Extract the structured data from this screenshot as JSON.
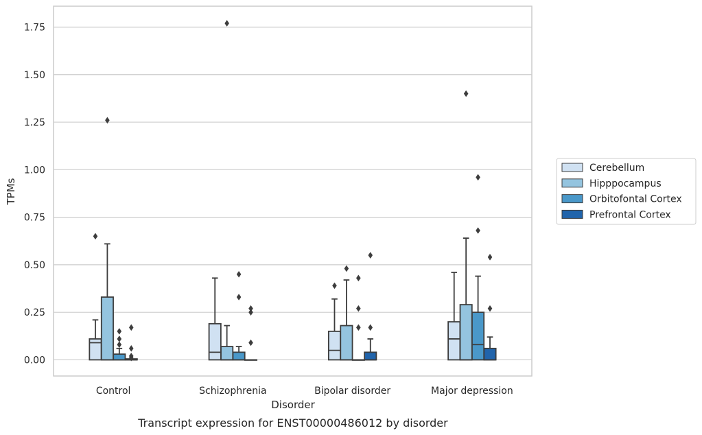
{
  "chart_data": {
    "type": "box",
    "title": "",
    "caption": "Transcript expression for ENST00000486012 by disorder",
    "xlabel": "Disorder",
    "ylabel": "TPMs",
    "ylim": [
      -0.085,
      1.86
    ],
    "yticks": [
      "0.00",
      "0.25",
      "0.50",
      "0.75",
      "1.00",
      "1.25",
      "1.50",
      "1.75"
    ],
    "grid": "horizontal",
    "legend_position": "right",
    "categories": [
      "Control",
      "Schizophrenia",
      "Bipolar disorder",
      "Major depression"
    ],
    "series": [
      {
        "name": "Cerebellum",
        "color": "#d0e1f2",
        "boxes": [
          {
            "q1": 0,
            "median": 0.09,
            "q3": 0.11,
            "whisker_low": 0,
            "whisker_high": 0.21,
            "outliers": [
              0.65
            ]
          },
          {
            "q1": 0,
            "median": 0.04,
            "q3": 0.19,
            "whisker_low": 0,
            "whisker_high": 0.43,
            "outliers": []
          },
          {
            "q1": 0,
            "median": 0.05,
            "q3": 0.15,
            "whisker_low": 0,
            "whisker_high": 0.32,
            "outliers": [
              0.39
            ]
          },
          {
            "q1": 0,
            "median": 0.11,
            "q3": 0.2,
            "whisker_low": 0,
            "whisker_high": 0.46,
            "outliers": []
          }
        ]
      },
      {
        "name": "Hipppocampus",
        "color": "#94c4df",
        "boxes": [
          {
            "q1": 0,
            "median": 0,
            "q3": 0.33,
            "whisker_low": 0,
            "whisker_high": 0.61,
            "outliers": [
              1.26
            ]
          },
          {
            "q1": 0,
            "median": 0,
            "q3": 0.07,
            "whisker_low": 0,
            "whisker_high": 0.18,
            "outliers": [
              1.77
            ]
          },
          {
            "q1": 0,
            "median": 0,
            "q3": 0.18,
            "whisker_low": 0,
            "whisker_high": 0.42,
            "outliers": [
              0.48
            ]
          },
          {
            "q1": 0,
            "median": 0,
            "q3": 0.29,
            "whisker_low": 0,
            "whisker_high": 0.64,
            "outliers": [
              1.4
            ]
          }
        ]
      },
      {
        "name": "Orbitofontal Cortex",
        "color": "#4a98c9",
        "boxes": [
          {
            "q1": 0,
            "median": 0,
            "q3": 0.03,
            "whisker_low": 0,
            "whisker_high": 0.06,
            "outliers": [
              0.08,
              0.11,
              0.15
            ]
          },
          {
            "q1": 0,
            "median": 0,
            "q3": 0.04,
            "whisker_low": 0,
            "whisker_high": 0.07,
            "outliers": [
              0.33,
              0.45
            ]
          },
          {
            "q1": 0,
            "median": 0,
            "q3": 0,
            "whisker_low": 0,
            "whisker_high": 0,
            "outliers": [
              0.17,
              0.27,
              0.43
            ]
          },
          {
            "q1": 0,
            "median": 0.08,
            "q3": 0.25,
            "whisker_low": 0,
            "whisker_high": 0.44,
            "outliers": [
              0.68,
              0.96
            ]
          }
        ]
      },
      {
        "name": "Prefrontal Cortex",
        "color": "#2164ab",
        "boxes": [
          {
            "q1": 0,
            "median": 0,
            "q3": 0.005,
            "whisker_low": 0,
            "whisker_high": 0.005,
            "outliers": [
              0.01,
              0.02,
              0.06,
              0.17
            ]
          },
          {
            "q1": 0,
            "median": 0,
            "q3": 0,
            "whisker_low": 0,
            "whisker_high": 0,
            "outliers": [
              0.09,
              0.25,
              0.27
            ]
          },
          {
            "q1": 0,
            "median": 0,
            "q3": 0.04,
            "whisker_low": 0,
            "whisker_high": 0.11,
            "outliers": [
              0.17,
              0.55
            ]
          },
          {
            "q1": 0,
            "median": 0,
            "q3": 0.06,
            "whisker_low": 0,
            "whisker_high": 0.12,
            "outliers": [
              0.27,
              0.54
            ]
          }
        ]
      }
    ]
  },
  "colors": {
    "box_edge": "#3d3d3d",
    "grid": "#cccccc",
    "frame": "#cccccc"
  }
}
